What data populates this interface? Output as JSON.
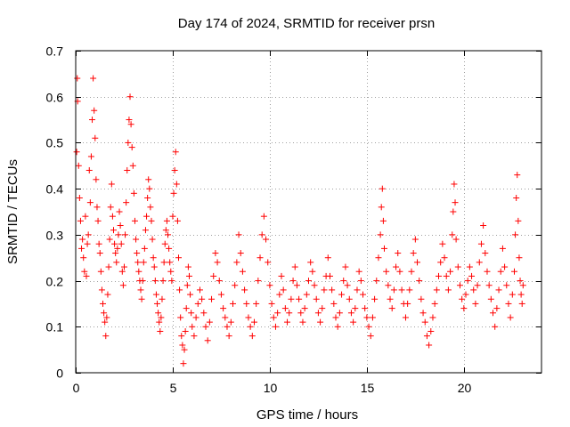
{
  "chart_data": {
    "type": "scatter",
    "title": "Day 174 of 2024, SRMTID for receiver prsn",
    "xlabel": "GPS time / hours",
    "ylabel": "SRMTID / TECUs",
    "xlim": [
      0,
      24
    ],
    "ylim": [
      0,
      0.7
    ],
    "xticks": [
      0,
      5,
      10,
      15,
      20
    ],
    "yticks": [
      0,
      0.1,
      0.2,
      0.3,
      0.4,
      0.5,
      0.6,
      0.7
    ],
    "xtick_labels": [
      "0",
      "5",
      "10",
      "15",
      "20"
    ],
    "ytick_labels": [
      "0",
      "0.1",
      "0.2",
      "0.3",
      "0.4",
      "0.5",
      "0.6",
      "0.7"
    ],
    "grid": true,
    "marker": "plus",
    "color": "#ff0000",
    "series": [
      {
        "name": "SRMTID",
        "points": [
          [
            0.05,
            0.48
          ],
          [
            0.08,
            0.64
          ],
          [
            0.1,
            0.59
          ],
          [
            0.15,
            0.45
          ],
          [
            0.2,
            0.38
          ],
          [
            0.25,
            0.33
          ],
          [
            0.3,
            0.27
          ],
          [
            0.35,
            0.29
          ],
          [
            0.4,
            0.25
          ],
          [
            0.45,
            0.22
          ],
          [
            0.5,
            0.34
          ],
          [
            0.55,
            0.21
          ],
          [
            0.6,
            0.28
          ],
          [
            0.65,
            0.3
          ],
          [
            0.7,
            0.44
          ],
          [
            0.75,
            0.37
          ],
          [
            0.8,
            0.47
          ],
          [
            0.85,
            0.55
          ],
          [
            0.9,
            0.64
          ],
          [
            0.95,
            0.57
          ],
          [
            1.0,
            0.51
          ],
          [
            1.05,
            0.42
          ],
          [
            1.1,
            0.36
          ],
          [
            1.15,
            0.33
          ],
          [
            1.2,
            0.28
          ],
          [
            1.25,
            0.26
          ],
          [
            1.3,
            0.22
          ],
          [
            1.35,
            0.18
          ],
          [
            1.4,
            0.15
          ],
          [
            1.45,
            0.13
          ],
          [
            1.5,
            0.11
          ],
          [
            1.55,
            0.08
          ],
          [
            1.6,
            0.12
          ],
          [
            1.65,
            0.17
          ],
          [
            1.7,
            0.23
          ],
          [
            1.75,
            0.29
          ],
          [
            1.8,
            0.36
          ],
          [
            1.85,
            0.41
          ],
          [
            1.9,
            0.34
          ],
          [
            1.95,
            0.31
          ],
          [
            2.0,
            0.28
          ],
          [
            2.05,
            0.26
          ],
          [
            2.1,
            0.24
          ],
          [
            2.15,
            0.27
          ],
          [
            2.2,
            0.3
          ],
          [
            2.25,
            0.35
          ],
          [
            2.3,
            0.32
          ],
          [
            2.35,
            0.28
          ],
          [
            2.4,
            0.22
          ],
          [
            2.45,
            0.19
          ],
          [
            2.5,
            0.23
          ],
          [
            2.55,
            0.3
          ],
          [
            2.6,
            0.37
          ],
          [
            2.65,
            0.44
          ],
          [
            2.7,
            0.5
          ],
          [
            2.75,
            0.55
          ],
          [
            2.8,
            0.6
          ],
          [
            2.85,
            0.54
          ],
          [
            2.9,
            0.49
          ],
          [
            2.95,
            0.45
          ],
          [
            3.0,
            0.39
          ],
          [
            3.05,
            0.33
          ],
          [
            3.1,
            0.29
          ],
          [
            3.15,
            0.26
          ],
          [
            3.2,
            0.24
          ],
          [
            3.25,
            0.22
          ],
          [
            3.3,
            0.2
          ],
          [
            3.35,
            0.18
          ],
          [
            3.4,
            0.16
          ],
          [
            3.45,
            0.2
          ],
          [
            3.5,
            0.24
          ],
          [
            3.55,
            0.27
          ],
          [
            3.6,
            0.31
          ],
          [
            3.65,
            0.34
          ],
          [
            3.7,
            0.38
          ],
          [
            3.75,
            0.42
          ],
          [
            3.8,
            0.4
          ],
          [
            3.85,
            0.36
          ],
          [
            3.9,
            0.33
          ],
          [
            3.95,
            0.29
          ],
          [
            4.0,
            0.25
          ],
          [
            4.05,
            0.23
          ],
          [
            4.1,
            0.2
          ],
          [
            4.15,
            0.17
          ],
          [
            4.2,
            0.15
          ],
          [
            4.25,
            0.13
          ],
          [
            4.3,
            0.11
          ],
          [
            4.35,
            0.09
          ],
          [
            4.4,
            0.12
          ],
          [
            4.45,
            0.16
          ],
          [
            4.5,
            0.2
          ],
          [
            4.55,
            0.24
          ],
          [
            4.6,
            0.28
          ],
          [
            4.65,
            0.31
          ],
          [
            4.7,
            0.33
          ],
          [
            4.75,
            0.3
          ],
          [
            4.8,
            0.27
          ],
          [
            4.85,
            0.24
          ],
          [
            4.9,
            0.22
          ],
          [
            4.95,
            0.2
          ],
          [
            5.0,
            0.34
          ],
          [
            5.05,
            0.39
          ],
          [
            5.1,
            0.44
          ],
          [
            5.15,
            0.48
          ],
          [
            5.2,
            0.41
          ],
          [
            5.25,
            0.33
          ],
          [
            5.3,
            0.25
          ],
          [
            5.35,
            0.18
          ],
          [
            5.4,
            0.12
          ],
          [
            5.45,
            0.08
          ],
          [
            5.5,
            0.06
          ],
          [
            5.55,
            0.02
          ],
          [
            5.6,
            0.05
          ],
          [
            5.65,
            0.09
          ],
          [
            5.7,
            0.14
          ],
          [
            5.75,
            0.19
          ],
          [
            5.8,
            0.23
          ],
          [
            5.85,
            0.21
          ],
          [
            5.9,
            0.17
          ],
          [
            5.95,
            0.13
          ],
          [
            6.0,
            0.1
          ],
          [
            6.1,
            0.08
          ],
          [
            6.2,
            0.12
          ],
          [
            6.3,
            0.15
          ],
          [
            6.4,
            0.18
          ],
          [
            6.5,
            0.16
          ],
          [
            6.6,
            0.13
          ],
          [
            6.7,
            0.1
          ],
          [
            6.8,
            0.07
          ],
          [
            6.9,
            0.11
          ],
          [
            7.0,
            0.16
          ],
          [
            7.1,
            0.21
          ],
          [
            7.2,
            0.26
          ],
          [
            7.3,
            0.24
          ],
          [
            7.4,
            0.2
          ],
          [
            7.5,
            0.17
          ],
          [
            7.6,
            0.14
          ],
          [
            7.7,
            0.12
          ],
          [
            7.8,
            0.1
          ],
          [
            7.9,
            0.08
          ],
          [
            8.0,
            0.11
          ],
          [
            8.1,
            0.15
          ],
          [
            8.2,
            0.19
          ],
          [
            8.3,
            0.24
          ],
          [
            8.4,
            0.3
          ],
          [
            8.5,
            0.26
          ],
          [
            8.6,
            0.22
          ],
          [
            8.7,
            0.18
          ],
          [
            8.8,
            0.15
          ],
          [
            8.9,
            0.12
          ],
          [
            9.0,
            0.1
          ],
          [
            9.1,
            0.08
          ],
          [
            9.2,
            0.11
          ],
          [
            9.3,
            0.15
          ],
          [
            9.4,
            0.2
          ],
          [
            9.5,
            0.25
          ],
          [
            9.6,
            0.3
          ],
          [
            9.7,
            0.34
          ],
          [
            9.8,
            0.29
          ],
          [
            9.9,
            0.24
          ],
          [
            10.0,
            0.19
          ],
          [
            10.1,
            0.15
          ],
          [
            10.2,
            0.12
          ],
          [
            10.3,
            0.1
          ],
          [
            10.4,
            0.13
          ],
          [
            10.5,
            0.17
          ],
          [
            10.6,
            0.21
          ],
          [
            10.7,
            0.18
          ],
          [
            10.8,
            0.14
          ],
          [
            10.9,
            0.11
          ],
          [
            11.0,
            0.13
          ],
          [
            11.1,
            0.16
          ],
          [
            11.2,
            0.2
          ],
          [
            11.3,
            0.23
          ],
          [
            11.4,
            0.19
          ],
          [
            11.5,
            0.16
          ],
          [
            11.6,
            0.13
          ],
          [
            11.7,
            0.11
          ],
          [
            11.8,
            0.14
          ],
          [
            11.9,
            0.17
          ],
          [
            12.0,
            0.2
          ],
          [
            12.1,
            0.24
          ],
          [
            12.2,
            0.22
          ],
          [
            12.3,
            0.19
          ],
          [
            12.4,
            0.16
          ],
          [
            12.5,
            0.13
          ],
          [
            12.6,
            0.11
          ],
          [
            12.7,
            0.14
          ],
          [
            12.8,
            0.18
          ],
          [
            12.9,
            0.21
          ],
          [
            13.0,
            0.25
          ],
          [
            13.1,
            0.21
          ],
          [
            13.2,
            0.18
          ],
          [
            13.3,
            0.15
          ],
          [
            13.4,
            0.12
          ],
          [
            13.5,
            0.1
          ],
          [
            13.6,
            0.13
          ],
          [
            13.7,
            0.17
          ],
          [
            13.8,
            0.2
          ],
          [
            13.9,
            0.23
          ],
          [
            14.0,
            0.19
          ],
          [
            14.1,
            0.16
          ],
          [
            14.2,
            0.13
          ],
          [
            14.3,
            0.11
          ],
          [
            14.4,
            0.14
          ],
          [
            14.5,
            0.18
          ],
          [
            14.6,
            0.22
          ],
          [
            14.7,
            0.2
          ],
          [
            14.8,
            0.17
          ],
          [
            14.9,
            0.14
          ],
          [
            15.0,
            0.12
          ],
          [
            15.1,
            0.1
          ],
          [
            15.2,
            0.08
          ],
          [
            15.3,
            0.12
          ],
          [
            15.4,
            0.16
          ],
          [
            15.5,
            0.2
          ],
          [
            15.6,
            0.25
          ],
          [
            15.7,
            0.3
          ],
          [
            15.75,
            0.36
          ],
          [
            15.8,
            0.4
          ],
          [
            15.85,
            0.33
          ],
          [
            15.9,
            0.27
          ],
          [
            16.0,
            0.22
          ],
          [
            16.1,
            0.19
          ],
          [
            16.2,
            0.16
          ],
          [
            16.3,
            0.14
          ],
          [
            16.4,
            0.18
          ],
          [
            16.5,
            0.23
          ],
          [
            16.6,
            0.26
          ],
          [
            16.7,
            0.22
          ],
          [
            16.8,
            0.18
          ],
          [
            16.9,
            0.15
          ],
          [
            17.0,
            0.12
          ],
          [
            17.1,
            0.15
          ],
          [
            17.2,
            0.18
          ],
          [
            17.3,
            0.22
          ],
          [
            17.4,
            0.26
          ],
          [
            17.5,
            0.29
          ],
          [
            17.6,
            0.24
          ],
          [
            17.7,
            0.2
          ],
          [
            17.8,
            0.16
          ],
          [
            17.9,
            0.13
          ],
          [
            18.0,
            0.11
          ],
          [
            18.1,
            0.08
          ],
          [
            18.2,
            0.06
          ],
          [
            18.3,
            0.09
          ],
          [
            18.4,
            0.12
          ],
          [
            18.5,
            0.15
          ],
          [
            18.6,
            0.18
          ],
          [
            18.7,
            0.21
          ],
          [
            18.8,
            0.24
          ],
          [
            18.9,
            0.28
          ],
          [
            19.0,
            0.25
          ],
          [
            19.1,
            0.21
          ],
          [
            19.2,
            0.18
          ],
          [
            19.3,
            0.22
          ],
          [
            19.4,
            0.3
          ],
          [
            19.45,
            0.35
          ],
          [
            19.5,
            0.41
          ],
          [
            19.55,
            0.37
          ],
          [
            19.6,
            0.29
          ],
          [
            19.7,
            0.23
          ],
          [
            19.8,
            0.19
          ],
          [
            19.9,
            0.16
          ],
          [
            20.0,
            0.14
          ],
          [
            20.1,
            0.17
          ],
          [
            20.2,
            0.2
          ],
          [
            20.3,
            0.23
          ],
          [
            20.4,
            0.21
          ],
          [
            20.5,
            0.18
          ],
          [
            20.6,
            0.15
          ],
          [
            20.7,
            0.19
          ],
          [
            20.8,
            0.24
          ],
          [
            20.9,
            0.28
          ],
          [
            21.0,
            0.32
          ],
          [
            21.1,
            0.26
          ],
          [
            21.2,
            0.22
          ],
          [
            21.3,
            0.19
          ],
          [
            21.4,
            0.16
          ],
          [
            21.5,
            0.13
          ],
          [
            21.6,
            0.1
          ],
          [
            21.7,
            0.14
          ],
          [
            21.8,
            0.18
          ],
          [
            21.9,
            0.22
          ],
          [
            22.0,
            0.27
          ],
          [
            22.1,
            0.23
          ],
          [
            22.2,
            0.19
          ],
          [
            22.3,
            0.15
          ],
          [
            22.4,
            0.12
          ],
          [
            22.5,
            0.17
          ],
          [
            22.6,
            0.22
          ],
          [
            22.65,
            0.3
          ],
          [
            22.7,
            0.38
          ],
          [
            22.75,
            0.43
          ],
          [
            22.8,
            0.33
          ],
          [
            22.85,
            0.25
          ],
          [
            22.9,
            0.2
          ],
          [
            22.95,
            0.17
          ],
          [
            23.0,
            0.15
          ],
          [
            23.05,
            0.19
          ]
        ]
      }
    ]
  }
}
